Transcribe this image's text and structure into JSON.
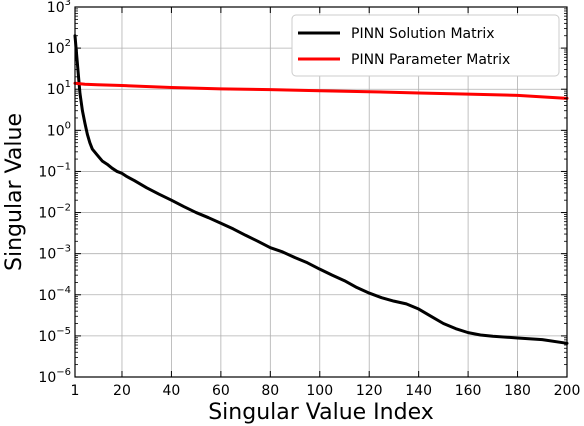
{
  "chart_data": {
    "type": "line",
    "xlabel": "Singular Value Index",
    "ylabel": "Singular Value",
    "x_scale": "linear",
    "y_scale": "log",
    "xlim": [
      1,
      200
    ],
    "ylim": [
      1e-06,
      1000
    ],
    "grid": true,
    "legend_position": "top-right",
    "x_ticks": [
      1,
      20,
      40,
      60,
      80,
      100,
      120,
      140,
      160,
      180,
      200
    ],
    "y_ticks": [
      {
        "value": 1e-06,
        "base": "10",
        "exp": "−6"
      },
      {
        "value": 1e-05,
        "base": "10",
        "exp": "−5"
      },
      {
        "value": 0.0001,
        "base": "10",
        "exp": "−4"
      },
      {
        "value": 0.001,
        "base": "10",
        "exp": "−3"
      },
      {
        "value": 0.01,
        "base": "10",
        "exp": "−2"
      },
      {
        "value": 0.1,
        "base": "10",
        "exp": "−1"
      },
      {
        "value": 1,
        "base": "10",
        "exp": "0"
      },
      {
        "value": 10,
        "base": "10",
        "exp": "1"
      },
      {
        "value": 100,
        "base": "10",
        "exp": "2"
      },
      {
        "value": 1000,
        "base": "10",
        "exp": "3"
      }
    ],
    "series": [
      {
        "name": "PINN Solution Matrix",
        "color": "#000000",
        "points": [
          [
            1,
            200
          ],
          [
            2,
            40
          ],
          [
            3,
            8
          ],
          [
            4,
            3
          ],
          [
            5,
            1.5
          ],
          [
            6,
            0.8
          ],
          [
            7,
            0.5
          ],
          [
            8,
            0.35
          ],
          [
            10,
            0.25
          ],
          [
            12,
            0.18
          ],
          [
            14,
            0.15
          ],
          [
            16,
            0.12
          ],
          [
            18,
            0.1
          ],
          [
            20,
            0.09
          ],
          [
            22,
            0.075
          ],
          [
            25,
            0.06
          ],
          [
            30,
            0.04
          ],
          [
            35,
            0.028
          ],
          [
            40,
            0.02
          ],
          [
            45,
            0.014
          ],
          [
            50,
            0.01
          ],
          [
            55,
            0.0075
          ],
          [
            60,
            0.0055
          ],
          [
            65,
            0.004
          ],
          [
            70,
            0.0028
          ],
          [
            75,
            0.002
          ],
          [
            80,
            0.0014
          ],
          [
            85,
            0.0011
          ],
          [
            90,
            0.0008
          ],
          [
            95,
            0.0006
          ],
          [
            100,
            0.00042
          ],
          [
            105,
            0.0003
          ],
          [
            110,
            0.00022
          ],
          [
            115,
            0.00015
          ],
          [
            120,
            0.00011
          ],
          [
            125,
            8.5e-05
          ],
          [
            130,
            7e-05
          ],
          [
            135,
            6e-05
          ],
          [
            140,
            4.5e-05
          ],
          [
            145,
            3e-05
          ],
          [
            150,
            2e-05
          ],
          [
            155,
            1.5e-05
          ],
          [
            160,
            1.2e-05
          ],
          [
            165,
            1.05e-05
          ],
          [
            170,
            9.8e-06
          ],
          [
            180,
            8.9e-06
          ],
          [
            190,
            8.1e-06
          ],
          [
            200,
            6.6e-06
          ]
        ]
      },
      {
        "name": "PINN Parameter Matrix",
        "color": "#ff0000",
        "points": [
          [
            1,
            14
          ],
          [
            2,
            13.8
          ],
          [
            5,
            13.2
          ],
          [
            10,
            12.8
          ],
          [
            20,
            12.3
          ],
          [
            40,
            11
          ],
          [
            60,
            10.2
          ],
          [
            80,
            9.8
          ],
          [
            100,
            9.2
          ],
          [
            120,
            8.7
          ],
          [
            140,
            8.1
          ],
          [
            160,
            7.6
          ],
          [
            180,
            7.1
          ],
          [
            200,
            6.0
          ]
        ]
      }
    ]
  }
}
